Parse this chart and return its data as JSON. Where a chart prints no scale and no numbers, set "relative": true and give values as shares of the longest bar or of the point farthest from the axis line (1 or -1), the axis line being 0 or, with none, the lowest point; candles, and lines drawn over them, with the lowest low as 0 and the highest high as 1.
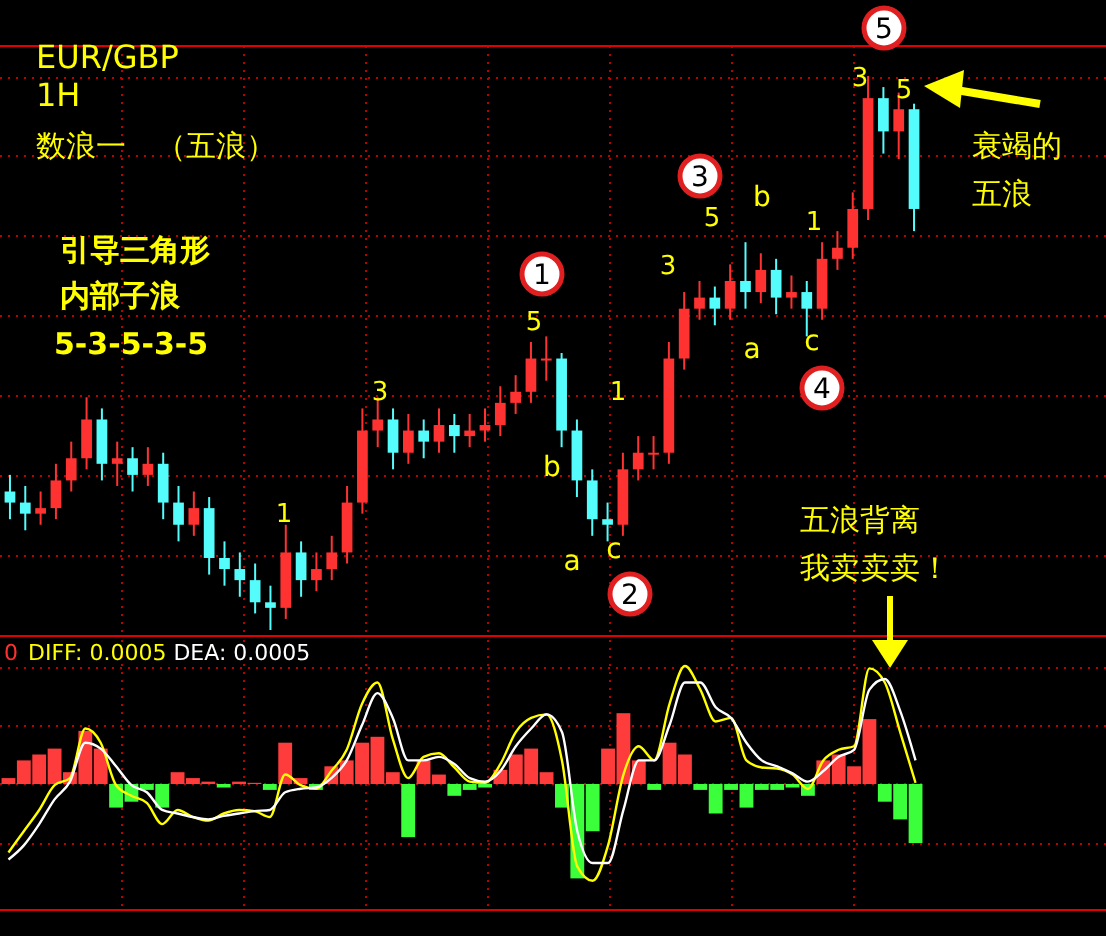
{
  "chart_data": [
    {
      "type": "candlestick",
      "relative": true,
      "title": "EUR/GBP",
      "subtitle": "1H",
      "grid": true,
      "categories": [
        null,
        null,
        null,
        null,
        null,
        null,
        null,
        null,
        null,
        null,
        null,
        null,
        null,
        null,
        null,
        null,
        null,
        null,
        null,
        null,
        null,
        null,
        null,
        null,
        null,
        null,
        null,
        null,
        null,
        null,
        null,
        null,
        null,
        null,
        null,
        null,
        null,
        null,
        null,
        null,
        null,
        null,
        null,
        null,
        null,
        null,
        null,
        null,
        null,
        null,
        null,
        null,
        null,
        null,
        null,
        null,
        null,
        null,
        null,
        null
      ],
      "ohlc": [
        [
          0.25,
          0.28,
          0.2,
          0.23
        ],
        [
          0.23,
          0.26,
          0.18,
          0.21
        ],
        [
          0.21,
          0.25,
          0.19,
          0.22
        ],
        [
          0.22,
          0.3,
          0.2,
          0.27
        ],
        [
          0.27,
          0.34,
          0.25,
          0.31
        ],
        [
          0.31,
          0.42,
          0.29,
          0.38
        ],
        [
          0.38,
          0.4,
          0.27,
          0.3
        ],
        [
          0.3,
          0.34,
          0.26,
          0.31
        ],
        [
          0.31,
          0.33,
          0.25,
          0.28
        ],
        [
          0.28,
          0.33,
          0.26,
          0.3
        ],
        [
          0.3,
          0.32,
          0.2,
          0.23
        ],
        [
          0.23,
          0.26,
          0.16,
          0.19
        ],
        [
          0.19,
          0.25,
          0.17,
          0.22
        ],
        [
          0.22,
          0.24,
          0.1,
          0.13
        ],
        [
          0.13,
          0.16,
          0.08,
          0.11
        ],
        [
          0.11,
          0.14,
          0.06,
          0.09
        ],
        [
          0.09,
          0.12,
          0.03,
          0.05
        ],
        [
          0.05,
          0.08,
          0,
          0.04
        ],
        [
          0.04,
          0.19,
          0.02,
          0.14
        ],
        [
          0.14,
          0.16,
          0.06,
          0.09
        ],
        [
          0.09,
          0.14,
          0.07,
          0.11
        ],
        [
          0.11,
          0.17,
          0.09,
          0.14
        ],
        [
          0.14,
          0.26,
          0.12,
          0.23
        ],
        [
          0.23,
          0.4,
          0.21,
          0.36
        ],
        [
          0.36,
          0.42,
          0.33,
          0.38
        ],
        [
          0.38,
          0.4,
          0.29,
          0.32
        ],
        [
          0.32,
          0.39,
          0.3,
          0.36
        ],
        [
          0.36,
          0.38,
          0.31,
          0.34
        ],
        [
          0.34,
          0.4,
          0.32,
          0.37
        ],
        [
          0.37,
          0.39,
          0.32,
          0.35
        ],
        [
          0.35,
          0.39,
          0.33,
          0.36
        ],
        [
          0.36,
          0.4,
          0.34,
          0.37
        ],
        [
          0.37,
          0.44,
          0.35,
          0.41
        ],
        [
          0.41,
          0.46,
          0.39,
          0.43
        ],
        [
          0.43,
          0.52,
          0.41,
          0.49
        ],
        [
          0.49,
          0.53,
          0.45,
          0.49
        ],
        [
          0.49,
          0.5,
          0.33,
          0.36
        ],
        [
          0.36,
          0.38,
          0.24,
          0.27
        ],
        [
          0.27,
          0.29,
          0.17,
          0.2
        ],
        [
          0.2,
          0.23,
          0.16,
          0.19
        ],
        [
          0.19,
          0.32,
          0.17,
          0.29
        ],
        [
          0.29,
          0.35,
          0.27,
          0.32
        ],
        [
          0.32,
          0.35,
          0.29,
          0.32
        ],
        [
          0.32,
          0.52,
          0.3,
          0.49
        ],
        [
          0.49,
          0.61,
          0.47,
          0.58
        ],
        [
          0.58,
          0.63,
          0.56,
          0.6
        ],
        [
          0.6,
          0.62,
          0.55,
          0.58
        ],
        [
          0.58,
          0.66,
          0.56,
          0.63
        ],
        [
          0.63,
          0.7,
          0.58,
          0.61
        ],
        [
          0.61,
          0.68,
          0.59,
          0.65
        ],
        [
          0.65,
          0.67,
          0.57,
          0.6
        ],
        [
          0.6,
          0.64,
          0.58,
          0.61
        ],
        [
          0.61,
          0.63,
          0.53,
          0.58
        ],
        [
          0.58,
          0.7,
          0.56,
          0.67
        ],
        [
          0.67,
          0.72,
          0.65,
          0.69
        ],
        [
          0.69,
          0.79,
          0.67,
          0.76
        ],
        [
          0.76,
          1,
          0.74,
          0.96
        ],
        [
          0.96,
          0.98,
          0.86,
          0.9
        ],
        [
          0.9,
          0.97,
          0.85,
          0.94
        ],
        [
          0.94,
          0.95,
          0.72,
          0.76
        ]
      ],
      "colors": [
        "#54fcfc",
        "#54fcfc",
        "#ff3232",
        "#ff3232",
        "#ff3232",
        "#ff3232",
        "#54fcfc",
        "#ff3232",
        "#54fcfc",
        "#ff3232",
        "#54fcfc",
        "#54fcfc",
        "#ff3232",
        "#54fcfc",
        "#54fcfc",
        "#54fcfc",
        "#54fcfc",
        "#54fcfc",
        "#ff3232",
        "#54fcfc",
        "#ff3232",
        "#ff3232",
        "#ff3232",
        "#ff3232",
        "#ff3232",
        "#54fcfc",
        "#ff3232",
        "#54fcfc",
        "#ff3232",
        "#54fcfc",
        "#ff3232",
        "#ff3232",
        "#ff3232",
        "#ff3232",
        "#ff3232",
        "#ff3232",
        "#54fcfc",
        "#54fcfc",
        "#54fcfc",
        "#54fcfc",
        "#ff3232",
        "#ff3232",
        "#ff3232",
        "#ff3232",
        "#ff3232",
        "#ff3232",
        "#54fcfc",
        "#ff3232",
        "#54fcfc",
        "#ff3232",
        "#54fcfc",
        "#ff3232",
        "#54fcfc",
        "#ff3232",
        "#ff3232",
        "#ff3232",
        "#ff3232",
        "#54fcfc",
        "#ff3232",
        "#54fcfc"
      ],
      "annotations": [
        "数浪一　（五浪）",
        "引导三角形",
        "内部子浪",
        "5-3-5-3-5",
        "1",
        "3",
        "5",
        "1",
        "3",
        "5",
        "b",
        "1",
        "3",
        "5",
        "a",
        "b",
        "c",
        "a",
        "c",
        "1",
        "2",
        "3",
        "4",
        "5",
        "衰竭的",
        "五浪",
        "五浪背离",
        "我卖卖卖！"
      ]
    },
    {
      "type": "line",
      "relative": true,
      "grid": true,
      "annotations": [
        "0"
      ],
      "categories": [
        null,
        null,
        null,
        null,
        null,
        null,
        null,
        null,
        null,
        null,
        null,
        null,
        null,
        null,
        null,
        null,
        null,
        null,
        null,
        null,
        null,
        null,
        null,
        null,
        null,
        null,
        null,
        null,
        null,
        null,
        null,
        null,
        null,
        null,
        null,
        null,
        null,
        null,
        null,
        null,
        null,
        null,
        null,
        null,
        null,
        null,
        null,
        null,
        null,
        null,
        null,
        null,
        null,
        null,
        null,
        null,
        null,
        null,
        null,
        null
      ],
      "series": [
        {
          "type": "bar",
          "values": [
            0.05,
            0.2,
            0.25,
            0.3,
            0.1,
            0.45,
            0.3,
            -0.2,
            -0.15,
            -0.05,
            -0.2,
            0.1,
            0.05,
            0.02,
            -0.03,
            0.02,
            0.01,
            -0.05,
            0.35,
            0.05,
            -0.05,
            0.15,
            0.2,
            0.35,
            0.4,
            0.1,
            -0.45,
            0.2,
            0.08,
            -0.1,
            -0.05,
            -0.03,
            0.12,
            0.25,
            0.3,
            0.1,
            -0.2,
            -0.8,
            -0.4,
            0.3,
            0.6,
            0.2,
            -0.05,
            0.35,
            0.25,
            -0.05,
            -0.25,
            -0.05,
            -0.2,
            -0.05,
            -0.05,
            -0.03,
            -0.1,
            0.2,
            0.25,
            0.15,
            0.55,
            -0.15,
            -0.3,
            -0.5
          ],
          "colors": [
            "#ff3c3c",
            "#ff3c3c",
            "#ff3c3c",
            "#ff3c3c",
            "#ff3c3c",
            "#ff3c3c",
            "#ff3c3c",
            "#3cff3c",
            "#3cff3c",
            "#3cff3c",
            "#3cff3c",
            "#ff3c3c",
            "#ff3c3c",
            "#ff3c3c",
            "#3cff3c",
            "#ff3c3c",
            "#ff3c3c",
            "#3cff3c",
            "#ff3c3c",
            "#ff3c3c",
            "#3cff3c",
            "#ff3c3c",
            "#ff3c3c",
            "#ff3c3c",
            "#ff3c3c",
            "#ff3c3c",
            "#3cff3c",
            "#ff3c3c",
            "#ff3c3c",
            "#3cff3c",
            "#3cff3c",
            "#3cff3c",
            "#ff3c3c",
            "#ff3c3c",
            "#ff3c3c",
            "#ff3c3c",
            "#3cff3c",
            "#3cff3c",
            "#3cff3c",
            "#ff3c3c",
            "#ff3c3c",
            "#ff3c3c",
            "#3cff3c",
            "#ff3c3c",
            "#ff3c3c",
            "#3cff3c",
            "#3cff3c",
            "#3cff3c",
            "#3cff3c",
            "#3cff3c",
            "#3cff3c",
            "#3cff3c",
            "#3cff3c",
            "#ff3c3c",
            "#ff3c3c",
            "#ff3c3c",
            "#ff3c3c",
            "#3cff3c",
            "#3cff3c",
            "#3cff3c"
          ]
        },
        {
          "type": "line",
          "name": "DIFF: 0.0005",
          "color": "#ffff00",
          "values": [
            -0.58,
            -0.4,
            -0.22,
            -0.01,
            0.05,
            0.47,
            0.35,
            -0.01,
            -0.1,
            -0.16,
            -0.34,
            -0.22,
            -0.28,
            -0.31,
            -0.25,
            -0.22,
            -0.23,
            -0.28,
            0.08,
            -0.01,
            -0.04,
            0.11,
            0.29,
            0.68,
            0.86,
            0.38,
            0.05,
            0.23,
            0.26,
            0.14,
            0.02,
            0.01,
            0.17,
            0.44,
            0.56,
            0.59,
            0.2,
            -0.7,
            -0.82,
            -0.52,
            0.08,
            0.32,
            0.2,
            0.68,
            1,
            0.8,
            0.53,
            0.56,
            0.2,
            0.14,
            0.13,
            0.08,
            -0.04,
            0.2,
            0.29,
            0.32,
            0.98,
            0.86,
            0.44,
            0.01
          ]
        },
        {
          "type": "line",
          "name": "DEA: 0.0005",
          "color": "#ffffff",
          "values": [
            -0.64,
            -0.52,
            -0.34,
            -0.13,
            0.02,
            0.35,
            0.3,
            0.15,
            -0.01,
            -0.07,
            -0.22,
            -0.25,
            -0.28,
            -0.3,
            -0.27,
            -0.25,
            -0.23,
            -0.22,
            -0.07,
            -0.04,
            -0.03,
            0.05,
            0.2,
            0.5,
            0.77,
            0.56,
            0.2,
            0.2,
            0.23,
            0.17,
            0.05,
            0.02,
            0.11,
            0.32,
            0.47,
            0.59,
            0.44,
            -0.4,
            -0.67,
            -0.67,
            -0.22,
            0.2,
            0.2,
            0.5,
            0.86,
            0.86,
            0.65,
            0.56,
            0.35,
            0.2,
            0.15,
            0.09,
            0.02,
            0.11,
            0.23,
            0.29,
            0.8,
            0.89,
            0.62,
            0.2
          ]
        }
      ]
    }
  ]
}
